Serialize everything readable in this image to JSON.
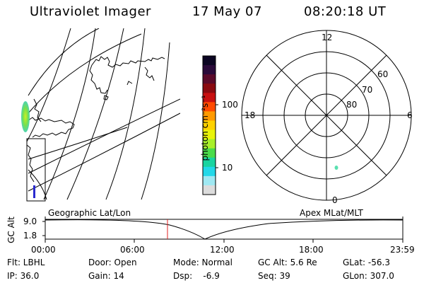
{
  "header": {
    "title": "Ultraviolet Imager",
    "date": "17 May 07",
    "time": "08:20:18 UT"
  },
  "colorbar": {
    "unit_label": "photon cm⁻²s⁻¹",
    "tick_labels": [
      "100",
      "10"
    ],
    "colors": [
      "#0b0522",
      "#2a0a3a",
      "#5a0a2a",
      "#8a0a10",
      "#c81010",
      "#ff4a00",
      "#ff9a00",
      "#ffd200",
      "#e9f40a",
      "#a8f02a",
      "#4adc4a",
      "#19d4a0",
      "#22d8e8",
      "#9fe8f2",
      "#dcdcdc"
    ]
  },
  "polar": {
    "mlt_labels": {
      "top": "12",
      "left": "18",
      "right": "6",
      "bottom": "0"
    },
    "lat_labels": [
      "60",
      "70",
      "80"
    ]
  },
  "strip": {
    "left_title": "Geographic Lat/Lon",
    "right_title": "Apex MLat/MLT",
    "axis_label": "GC Alt",
    "y_ticks": [
      "9.0",
      "1.8"
    ],
    "x_ticks": [
      "00:00",
      "06:00",
      "12:00",
      "18:00",
      "23:59"
    ]
  },
  "footer": {
    "row1": {
      "filter": "Flt: LBHL",
      "door": "Door: Open",
      "mode": "Mode: Normal",
      "gc_alt": "GC Alt: 5.6 Re",
      "glat": "GLat: -56.3"
    },
    "row2": {
      "ip": "IP: 36.0",
      "gain": "Gain: 14",
      "dsp": "Dsp:    -6.9",
      "seq": "Seq: 39",
      "glon": "GLon: 307.0"
    }
  }
}
